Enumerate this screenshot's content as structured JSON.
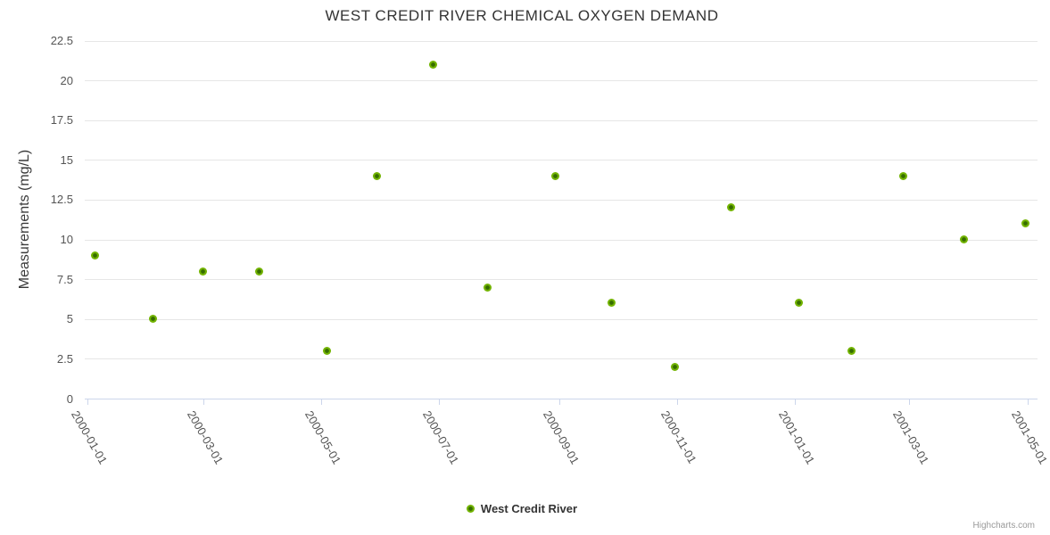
{
  "chart": {
    "credits": "Highcharts.com"
  },
  "chart_data": {
    "type": "scatter",
    "title": "WEST CREDIT RIVER CHEMICAL OXYGEN DEMAND",
    "xlabel": "",
    "ylabel": "Measurements (mg/L)",
    "ylim": [
      0,
      22.5
    ],
    "y_ticks": [
      0,
      2.5,
      5,
      7.5,
      10,
      12.5,
      15,
      17.5,
      20,
      22.5
    ],
    "y_tick_labels": [
      "0",
      "2.5",
      "5",
      "7.5",
      "10",
      "12.5",
      "15",
      "17.5",
      "20",
      "22.5"
    ],
    "x_tick_dates": [
      "2000-01-01",
      "2000-03-01",
      "2000-05-01",
      "2000-07-01",
      "2000-09-01",
      "2000-11-01",
      "2001-01-01",
      "2001-03-01",
      "2001-05-01"
    ],
    "x_tick_labels": [
      "2000-01-01",
      "2000-03-01",
      "2000-05-01",
      "2000-07-01",
      "2000-09-01",
      "2000-11-01",
      "2001-01-01",
      "2001-03-01",
      "2001-05-01"
    ],
    "grid": "horizontal",
    "legend_position": "bottom-center",
    "colors": {
      "marker_ring": "#72b301",
      "marker_core": "#366d00",
      "gridline": "#e6e6e6",
      "axis_line": "#ccd6eb",
      "title_text": "#333333",
      "label_text": "#555555",
      "credits_text": "#999999"
    },
    "series": [
      {
        "name": "West Credit River",
        "points": [
          {
            "date": "2000-01-05",
            "value": 9
          },
          {
            "date": "2000-02-04",
            "value": 5
          },
          {
            "date": "2000-03-01",
            "value": 8
          },
          {
            "date": "2000-03-30",
            "value": 8
          },
          {
            "date": "2000-05-04",
            "value": 3
          },
          {
            "date": "2000-05-30",
            "value": 14
          },
          {
            "date": "2000-06-28",
            "value": 21
          },
          {
            "date": "2000-07-26",
            "value": 7
          },
          {
            "date": "2000-08-30",
            "value": 14
          },
          {
            "date": "2000-09-28",
            "value": 6
          },
          {
            "date": "2000-10-31",
            "value": 2
          },
          {
            "date": "2000-11-29",
            "value": 12
          },
          {
            "date": "2001-01-03",
            "value": 6
          },
          {
            "date": "2001-01-30",
            "value": 3
          },
          {
            "date": "2001-02-26",
            "value": 14
          },
          {
            "date": "2001-03-29",
            "value": 10
          },
          {
            "date": "2001-04-30",
            "value": 11
          }
        ]
      }
    ]
  }
}
